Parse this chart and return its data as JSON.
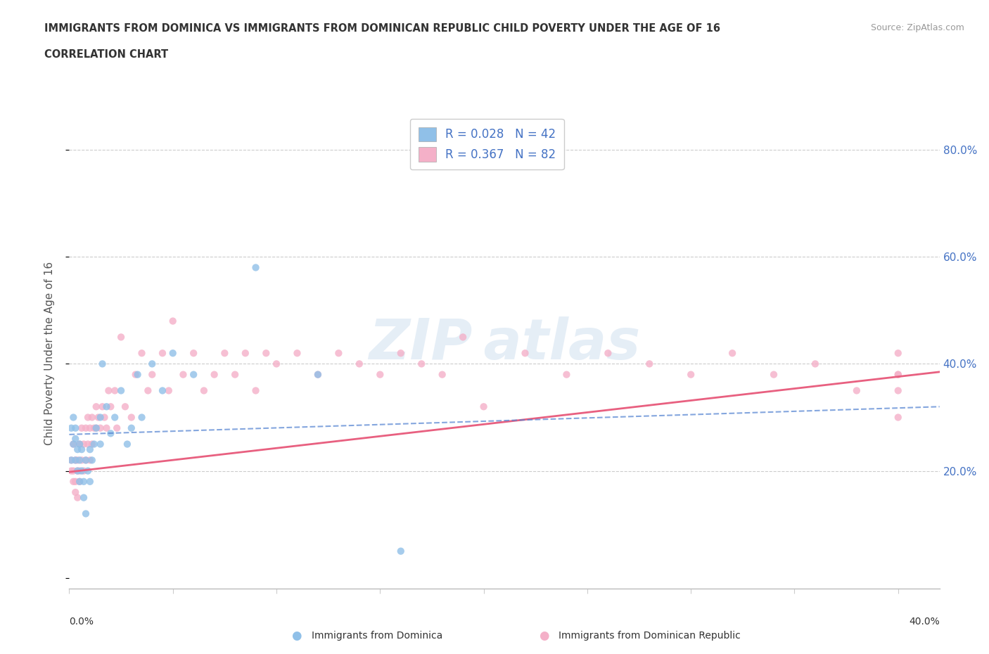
{
  "title": "IMMIGRANTS FROM DOMINICA VS IMMIGRANTS FROM DOMINICAN REPUBLIC CHILD POVERTY UNDER THE AGE OF 16",
  "subtitle": "CORRELATION CHART",
  "source": "Source: ZipAtlas.com",
  "ylabel": "Child Poverty Under the Age of 16",
  "xlim": [
    0.0,
    0.42
  ],
  "ylim": [
    -0.02,
    0.86
  ],
  "legend1_r": "0.028",
  "legend1_n": "42",
  "legend2_r": "0.367",
  "legend2_n": "82",
  "color_dominica": "#90c0e8",
  "color_domrep": "#f4b0c8",
  "color_blue_line": "#5080d0",
  "color_pink_line": "#e86080",
  "dominica_x": [
    0.001,
    0.001,
    0.002,
    0.002,
    0.003,
    0.003,
    0.003,
    0.004,
    0.004,
    0.005,
    0.005,
    0.005,
    0.006,
    0.006,
    0.007,
    0.007,
    0.008,
    0.008,
    0.009,
    0.01,
    0.01,
    0.011,
    0.012,
    0.013,
    0.015,
    0.015,
    0.016,
    0.018,
    0.02,
    0.022,
    0.025,
    0.028,
    0.03,
    0.033,
    0.035,
    0.04,
    0.045,
    0.05,
    0.06,
    0.09,
    0.12,
    0.16
  ],
  "dominica_y": [
    0.28,
    0.22,
    0.3,
    0.25,
    0.28,
    0.26,
    0.22,
    0.24,
    0.2,
    0.25,
    0.18,
    0.22,
    0.2,
    0.24,
    0.15,
    0.18,
    0.22,
    0.12,
    0.2,
    0.24,
    0.18,
    0.22,
    0.25,
    0.28,
    0.3,
    0.25,
    0.4,
    0.32,
    0.27,
    0.3,
    0.35,
    0.25,
    0.28,
    0.38,
    0.3,
    0.4,
    0.35,
    0.42,
    0.38,
    0.58,
    0.38,
    0.05
  ],
  "domrep_x": [
    0.001,
    0.001,
    0.002,
    0.002,
    0.002,
    0.003,
    0.003,
    0.003,
    0.004,
    0.004,
    0.004,
    0.005,
    0.005,
    0.005,
    0.006,
    0.006,
    0.007,
    0.007,
    0.008,
    0.008,
    0.009,
    0.009,
    0.01,
    0.01,
    0.011,
    0.011,
    0.012,
    0.013,
    0.013,
    0.014,
    0.015,
    0.016,
    0.017,
    0.018,
    0.019,
    0.02,
    0.022,
    0.023,
    0.025,
    0.027,
    0.03,
    0.032,
    0.035,
    0.038,
    0.04,
    0.045,
    0.048,
    0.05,
    0.055,
    0.06,
    0.065,
    0.07,
    0.075,
    0.08,
    0.085,
    0.09,
    0.095,
    0.1,
    0.11,
    0.12,
    0.13,
    0.14,
    0.15,
    0.16,
    0.17,
    0.18,
    0.19,
    0.2,
    0.22,
    0.24,
    0.26,
    0.28,
    0.3,
    0.32,
    0.34,
    0.36,
    0.38,
    0.4,
    0.4,
    0.4,
    0.4,
    0.4
  ],
  "domrep_y": [
    0.22,
    0.2,
    0.25,
    0.2,
    0.18,
    0.22,
    0.18,
    0.16,
    0.2,
    0.15,
    0.22,
    0.25,
    0.2,
    0.18,
    0.22,
    0.28,
    0.25,
    0.2,
    0.28,
    0.22,
    0.25,
    0.3,
    0.22,
    0.28,
    0.3,
    0.25,
    0.28,
    0.32,
    0.28,
    0.3,
    0.28,
    0.32,
    0.3,
    0.28,
    0.35,
    0.32,
    0.35,
    0.28,
    0.45,
    0.32,
    0.3,
    0.38,
    0.42,
    0.35,
    0.38,
    0.42,
    0.35,
    0.48,
    0.38,
    0.42,
    0.35,
    0.38,
    0.42,
    0.38,
    0.42,
    0.35,
    0.42,
    0.4,
    0.42,
    0.38,
    0.42,
    0.4,
    0.38,
    0.42,
    0.4,
    0.38,
    0.45,
    0.32,
    0.42,
    0.38,
    0.42,
    0.4,
    0.38,
    0.42,
    0.38,
    0.4,
    0.35,
    0.42,
    0.38,
    0.3,
    0.35,
    0.38
  ],
  "trend_dom_x0": 0.0,
  "trend_dom_x1": 0.42,
  "trend_dom_y0": 0.268,
  "trend_dom_y1": 0.32,
  "trend_rep_x0": 0.0,
  "trend_rep_x1": 0.42,
  "trend_rep_y0": 0.198,
  "trend_rep_y1": 0.385
}
